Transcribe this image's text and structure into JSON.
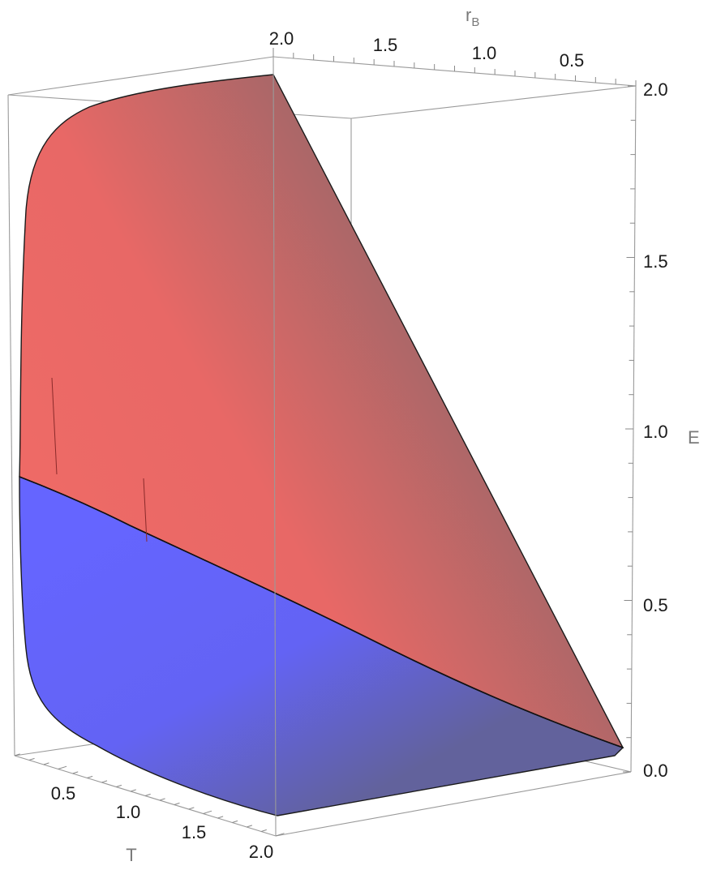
{
  "chart_data": {
    "type": "surface3d",
    "axes": {
      "rB": {
        "label": "r",
        "label_sub": "B",
        "range": [
          0.2,
          2.0
        ],
        "ticks": [
          "2.0",
          "1.5",
          "1.0",
          "0.5"
        ]
      },
      "T": {
        "label": "T",
        "range": [
          0.2,
          2.0
        ],
        "ticks": [
          "0.5",
          "1.0",
          "1.5",
          "2.0"
        ]
      },
      "E": {
        "label": "E",
        "range": [
          0.0,
          2.0
        ],
        "ticks": [
          "0.0",
          "0.5",
          "1.0",
          "1.5",
          "2.0"
        ]
      }
    },
    "surfaces": [
      {
        "id": "upper",
        "color": "#e86666",
        "shade_color": "#a36768",
        "notes": "E surface above the intersection curve"
      },
      {
        "id": "lower",
        "color": "#6464ff",
        "shade_color": "#63639a",
        "notes": "E surface below the intersection curve"
      }
    ],
    "intersection_curve_E_vs_T": [
      [
        0.2,
        0.87
      ],
      [
        0.5,
        0.75
      ],
      [
        1.0,
        0.55
      ],
      [
        1.5,
        0.36
      ],
      [
        2.0,
        0.2
      ]
    ],
    "box": true,
    "grid": false
  }
}
